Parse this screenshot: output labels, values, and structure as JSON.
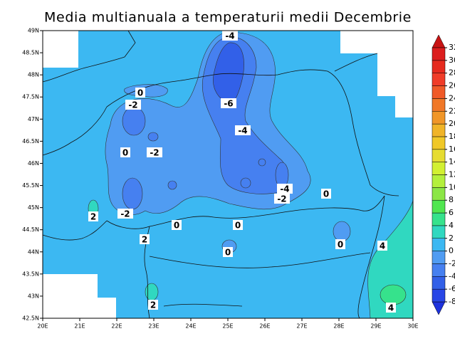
{
  "title": "Media multianuala a temperaturii medii Decembrie",
  "map": {
    "lon_ticks": [
      {
        "value": 20,
        "label": "20E"
      },
      {
        "value": 21,
        "label": "21E"
      },
      {
        "value": 22,
        "label": "22E"
      },
      {
        "value": 23,
        "label": "23E"
      },
      {
        "value": 24,
        "label": "24E"
      },
      {
        "value": 25,
        "label": "25E"
      },
      {
        "value": 26,
        "label": "26E"
      },
      {
        "value": 27,
        "label": "27E"
      },
      {
        "value": 28,
        "label": "28E"
      },
      {
        "value": 29,
        "label": "29E"
      },
      {
        "value": 30,
        "label": "30E"
      }
    ],
    "lat_ticks": [
      {
        "value": 49,
        "label": "49N"
      },
      {
        "value": 48.5,
        "label": "48.5N"
      },
      {
        "value": 48,
        "label": "48N"
      },
      {
        "value": 47.5,
        "label": "47.5N"
      },
      {
        "value": 47,
        "label": "47N"
      },
      {
        "value": 46.5,
        "label": "46.5N"
      },
      {
        "value": 46,
        "label": "46N"
      },
      {
        "value": 45.5,
        "label": "45.5N"
      },
      {
        "value": 45,
        "label": "45N"
      },
      {
        "value": 44.5,
        "label": "44.5N"
      },
      {
        "value": 44,
        "label": "44N"
      },
      {
        "value": 43.5,
        "label": "43.5N"
      },
      {
        "value": 43,
        "label": "43N"
      },
      {
        "value": 42.5,
        "label": "42.5N"
      }
    ],
    "contour_labels": [
      "-4",
      "-6",
      "-4",
      "0",
      "-2",
      "-2",
      "0",
      "-4",
      "-2",
      "0",
      "2",
      "-2",
      "0",
      "0",
      "2",
      "0",
      "0",
      "4",
      "2",
      "4"
    ]
  },
  "colorbar": {
    "levels": [
      -8,
      -6,
      -4,
      -2,
      0,
      2,
      4,
      6,
      8,
      10,
      12,
      14,
      16,
      18,
      20,
      22,
      24,
      26,
      28,
      30,
      32
    ],
    "colors": [
      "#2846e6",
      "#3260e8",
      "#4680f0",
      "#509cf2",
      "#3cb8f2",
      "#30d8c0",
      "#36e28c",
      "#50e650",
      "#8ce646",
      "#b4f03c",
      "#d2f032",
      "#e6dc32",
      "#f0c828",
      "#f0b428",
      "#f09628",
      "#f07828",
      "#f05a28",
      "#f03c28",
      "#e62a1e",
      "#dc1e1e"
    ],
    "under": "#1e32dc",
    "over": "#c81414"
  }
}
